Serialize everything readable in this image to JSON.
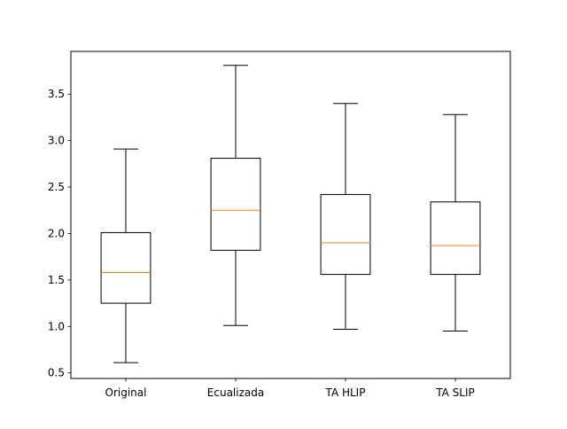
{
  "chart_data": {
    "type": "box",
    "categories": [
      "Original",
      "Ecualizada",
      "TA HLIP",
      "TA SLIP"
    ],
    "boxes": [
      {
        "whisker_low": 0.61,
        "q1": 1.25,
        "median": 1.58,
        "q3": 2.01,
        "whisker_high": 2.91
      },
      {
        "whisker_low": 1.01,
        "q1": 1.82,
        "median": 2.25,
        "q3": 2.81,
        "whisker_high": 3.81
      },
      {
        "whisker_low": 0.97,
        "q1": 1.56,
        "median": 1.9,
        "q3": 2.42,
        "whisker_high": 3.4
      },
      {
        "whisker_low": 0.95,
        "q1": 1.56,
        "median": 1.87,
        "q3": 2.34,
        "whisker_high": 3.28
      }
    ],
    "title": "",
    "xlabel": "",
    "ylabel": "",
    "ylim": [
      0.44,
      3.96
    ],
    "yticks": [
      0.5,
      1.0,
      1.5,
      2.0,
      2.5,
      3.0,
      3.5
    ],
    "ytick_labels": [
      "0.5",
      "1.0",
      "1.5",
      "2.0",
      "2.5",
      "3.0",
      "3.5"
    ],
    "grid": false,
    "colors": {
      "box": "#000000",
      "median": "#ff7f0e",
      "background": "#ffffff"
    }
  }
}
